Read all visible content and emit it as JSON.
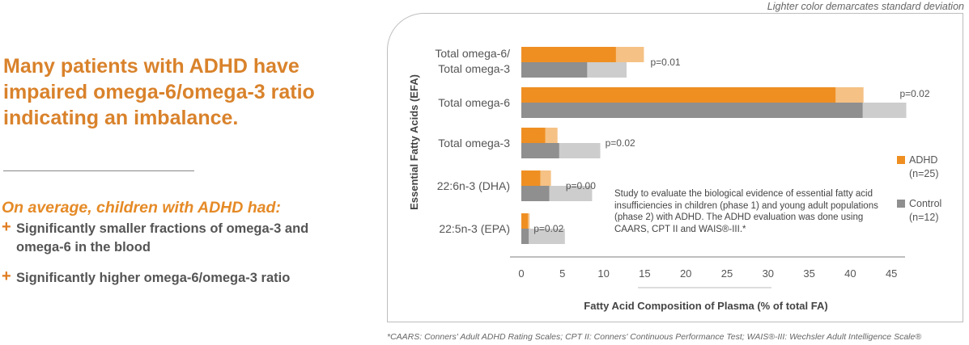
{
  "top_note": "Lighter color demarcates standard deviation",
  "headline": "Many patients with ADHD have impaired omega-6/omega-3 ratio indicating an imbalance.",
  "subhead": "On average, children with ADHD had:",
  "bullets": [
    "Significantly smaller fractions of omega-3 and omega-6 in the blood",
    "Significantly higher omega-6/omega-3 ratio"
  ],
  "study_note": "Study to evaluate the biological evidence of essential fatty acid insufficiencies in children (phase 1) and young adult populations (phase 2) with ADHD. The ADHD evaluation was done using CAARS, CPT II and WAIS®-III.*",
  "footnote": "*CAARS: Conners' Adult ADHD Rating Scales; CPT II: Conners' Continuous Performance Test; WAIS®-III: Wechsler Adult Intelligence Scale®",
  "legend": {
    "adhd": {
      "label": "ADHD",
      "n": "(n=25)"
    },
    "control": {
      "label": "Control",
      "n": "(n=12)"
    }
  },
  "colors": {
    "adhd": "#ef8f22",
    "adhd_sd": "#f5c184",
    "control": "#8f8f8f",
    "control_sd": "#cdcdcd",
    "headline": "#d9822b"
  },
  "chart_data": {
    "type": "bar",
    "orientation": "horizontal",
    "xlabel": "Fatty Acid Composition of Plasma (% of total FA)",
    "ylabel": "Essential Fatty Acids (EFA)",
    "xlim": [
      0,
      46
    ],
    "xticks": [
      0,
      5,
      10,
      15,
      20,
      25,
      30,
      35,
      40,
      45
    ],
    "grid": false,
    "legend_position": "right",
    "categories": [
      [
        "Total omega-6/",
        "Total omega-3"
      ],
      [
        "Total omega-6"
      ],
      [
        "Total omega-3"
      ],
      [
        "22:6n-3 (DHA)"
      ],
      [
        "22:5n-3 (EPA)"
      ]
    ],
    "series": [
      {
        "name": "ADHD",
        "values": [
          11.5,
          38.2,
          2.9,
          2.3,
          0.8
        ],
        "sd_upper": [
          14.9,
          41.6,
          4.4,
          3.6,
          1.0
        ]
      },
      {
        "name": "Control",
        "values": [
          8.0,
          41.5,
          4.6,
          3.4,
          0.9
        ],
        "sd_upper": [
          12.8,
          46.8,
          9.6,
          8.6,
          5.3
        ]
      }
    ],
    "p_values": [
      "p=0.01",
      "p=0.02",
      "p=0.02",
      "p=0.00",
      "p=0.02"
    ]
  }
}
